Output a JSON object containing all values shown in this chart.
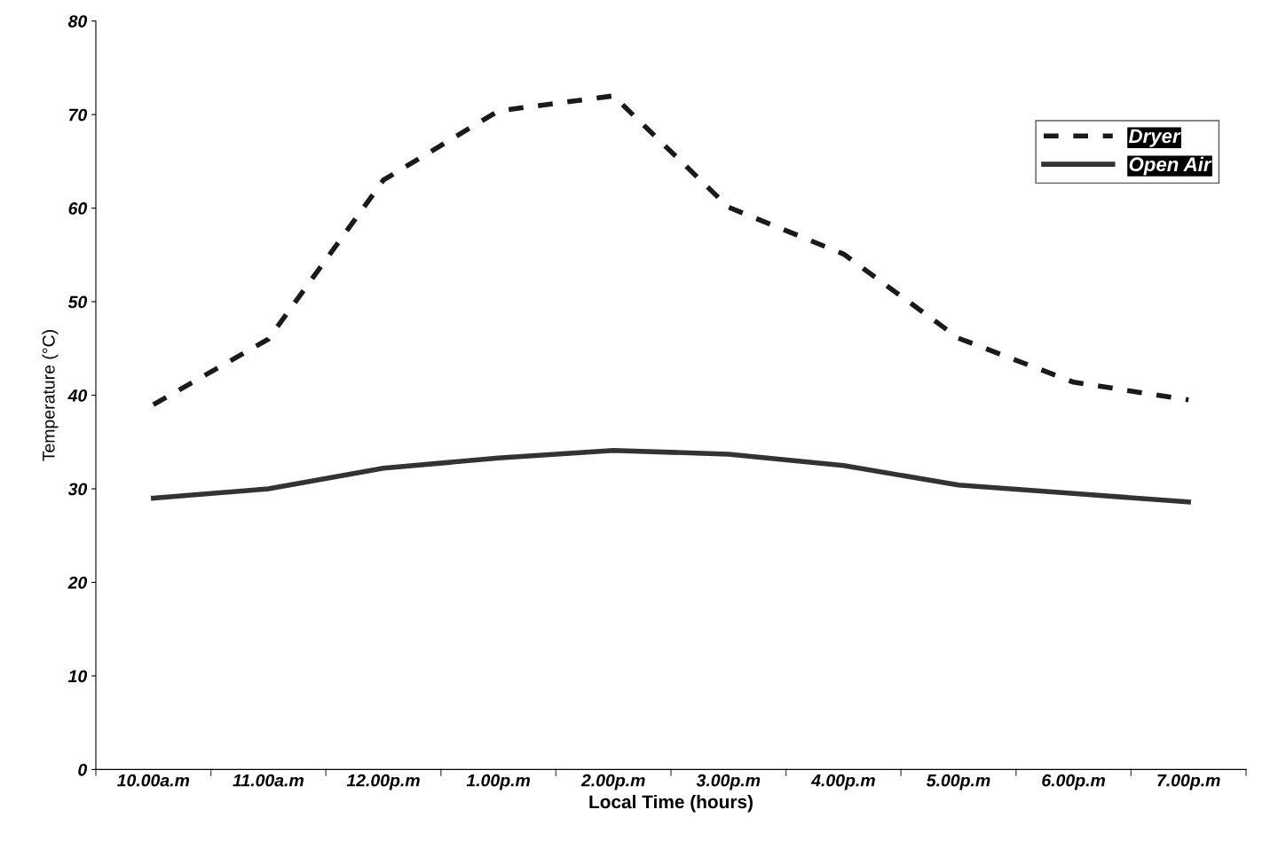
{
  "chart_data": {
    "type": "line",
    "xlabel": "Local Time (hours)",
    "ylabel": "Temperature (°C)",
    "categories": [
      "10.00a.m",
      "11.00a.m",
      "12.00p.m",
      "1.00p.m",
      "2.00p.m",
      "3.00p.m",
      "4.00p.m",
      "5.00p.m",
      "6.00p.m",
      "7.00p.m"
    ],
    "series": [
      {
        "name": "Dryer",
        "color": "#1a1a1a",
        "line_style": "dashed",
        "values": [
          39,
          46,
          63,
          70.4,
          72,
          60.1,
          55.1,
          46.1,
          41.4,
          39.5
        ]
      },
      {
        "name": "Open Air",
        "color": "#333333",
        "line_style": "solid",
        "values": [
          29,
          30,
          32.2,
          33.3,
          34.1,
          33.7,
          32.5,
          30.4,
          29.5,
          28.6
        ]
      }
    ],
    "ylim": [
      0,
      80
    ],
    "yticks": [
      0,
      10,
      20,
      30,
      40,
      50,
      60,
      70,
      80
    ],
    "grid": false,
    "legend": "top right",
    "marker": "none"
  }
}
